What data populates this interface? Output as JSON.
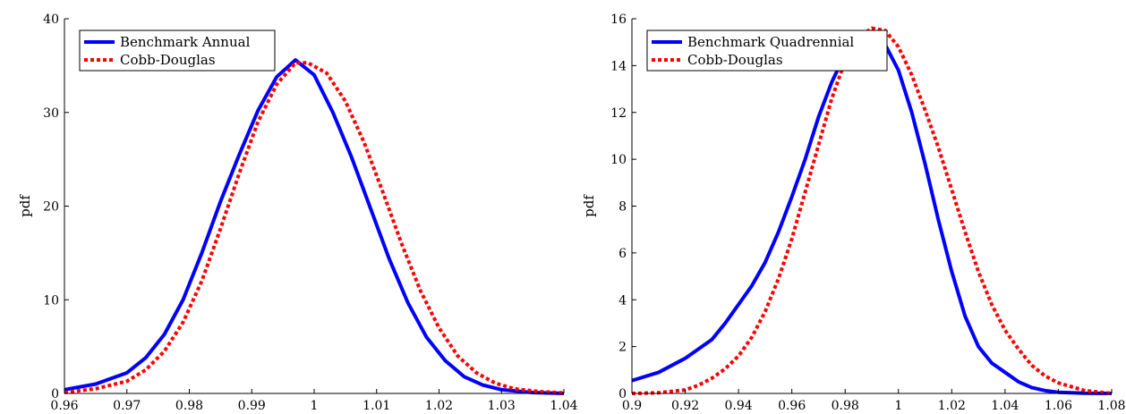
{
  "chart_data": [
    {
      "type": "line",
      "title": "",
      "xlabel": "",
      "ylabel": "pdf",
      "xlim": [
        0.96,
        1.04
      ],
      "ylim": [
        0,
        40
      ],
      "xticks": [
        "0.96",
        "0.97",
        "0.98",
        "0.99",
        "1",
        "1.01",
        "1.02",
        "1.03",
        "1.04"
      ],
      "xtick_values": [
        0.96,
        0.97,
        0.98,
        0.99,
        1.0,
        1.01,
        1.02,
        1.03,
        1.04
      ],
      "yticks": [
        "0",
        "10",
        "20",
        "30",
        "40"
      ],
      "ytick_values": [
        0,
        10,
        20,
        30,
        40
      ],
      "grid": false,
      "legend_position": "top-left",
      "series": [
        {
          "name": "Benchmark Annual",
          "color": "#0000ff",
          "style": "solid",
          "x": [
            0.96,
            0.965,
            0.97,
            0.973,
            0.976,
            0.979,
            0.982,
            0.985,
            0.988,
            0.991,
            0.994,
            0.997,
            1.0,
            1.003,
            1.006,
            1.009,
            1.012,
            1.015,
            1.018,
            1.021,
            1.024,
            1.027,
            1.03,
            1.035,
            1.04
          ],
          "y": [
            0.4,
            1.0,
            2.2,
            3.8,
            6.3,
            10.0,
            15.0,
            20.5,
            25.5,
            30.2,
            33.8,
            35.6,
            34.0,
            30.0,
            25.2,
            19.8,
            14.4,
            9.7,
            6.0,
            3.5,
            1.8,
            0.9,
            0.4,
            0.1,
            0.0
          ]
        },
        {
          "name": "Cobb-Douglas",
          "color": "#ff0000",
          "style": "dotted",
          "x": [
            0.96,
            0.965,
            0.97,
            0.973,
            0.976,
            0.979,
            0.982,
            0.985,
            0.988,
            0.991,
            0.994,
            0.997,
            0.999,
            1.002,
            1.005,
            1.008,
            1.011,
            1.014,
            1.017,
            1.02,
            1.023,
            1.026,
            1.029,
            1.032,
            1.036,
            1.04
          ],
          "y": [
            0.1,
            0.5,
            1.3,
            2.5,
            4.5,
            7.6,
            12.0,
            17.6,
            23.5,
            29.0,
            33.0,
            35.3,
            35.3,
            34.2,
            31.2,
            26.8,
            21.5,
            16.0,
            11.0,
            7.0,
            4.0,
            2.2,
            1.1,
            0.5,
            0.2,
            0.05
          ]
        }
      ]
    },
    {
      "type": "line",
      "title": "",
      "xlabel": "",
      "ylabel": "pdf",
      "xlim": [
        0.9,
        1.08
      ],
      "ylim": [
        0,
        16
      ],
      "xticks": [
        "0.9",
        "0.92",
        "0.94",
        "0.96",
        "0.98",
        "1",
        "1.02",
        "1.04",
        "1.06",
        "1.08"
      ],
      "xtick_values": [
        0.9,
        0.92,
        0.94,
        0.96,
        0.98,
        1.0,
        1.02,
        1.04,
        1.06,
        1.08
      ],
      "yticks": [
        "0",
        "2",
        "4",
        "6",
        "8",
        "10",
        "12",
        "14",
        "16"
      ],
      "ytick_values": [
        0,
        2,
        4,
        6,
        8,
        10,
        12,
        14,
        16
      ],
      "grid": false,
      "legend_position": "top-left",
      "series": [
        {
          "name": "Benchmark Quadrennial",
          "color": "#0000ff",
          "style": "solid",
          "x": [
            0.9,
            0.91,
            0.92,
            0.93,
            0.935,
            0.94,
            0.945,
            0.95,
            0.955,
            0.96,
            0.965,
            0.97,
            0.975,
            0.98,
            0.985,
            0.99,
            0.995,
            1.0,
            1.005,
            1.01,
            1.015,
            1.02,
            1.025,
            1.03,
            1.035,
            1.04,
            1.045,
            1.05,
            1.055,
            1.06,
            1.07,
            1.08
          ],
          "y": [
            0.55,
            0.9,
            1.5,
            2.3,
            3.0,
            3.8,
            4.6,
            5.6,
            6.9,
            8.4,
            10.0,
            11.8,
            13.3,
            14.5,
            15.2,
            15.3,
            14.9,
            13.8,
            12.0,
            9.8,
            7.4,
            5.2,
            3.3,
            2.0,
            1.3,
            0.9,
            0.5,
            0.25,
            0.12,
            0.05,
            0.01,
            0.0
          ]
        },
        {
          "name": "Cobb-Douglas",
          "color": "#ff0000",
          "style": "dotted",
          "x": [
            0.9,
            0.91,
            0.92,
            0.925,
            0.93,
            0.935,
            0.94,
            0.945,
            0.95,
            0.955,
            0.96,
            0.965,
            0.97,
            0.975,
            0.98,
            0.985,
            0.99,
            0.995,
            1.0,
            1.005,
            1.01,
            1.015,
            1.02,
            1.025,
            1.03,
            1.035,
            1.04,
            1.045,
            1.05,
            1.055,
            1.06,
            1.07,
            1.08
          ],
          "y": [
            0.0,
            0.03,
            0.15,
            0.35,
            0.65,
            1.05,
            1.6,
            2.4,
            3.5,
            4.9,
            6.6,
            8.6,
            10.6,
            12.6,
            14.2,
            15.2,
            15.6,
            15.5,
            14.8,
            13.6,
            12.1,
            10.5,
            8.7,
            6.9,
            5.2,
            3.8,
            2.7,
            1.9,
            1.2,
            0.75,
            0.45,
            0.12,
            0.0
          ]
        }
      ]
    }
  ]
}
